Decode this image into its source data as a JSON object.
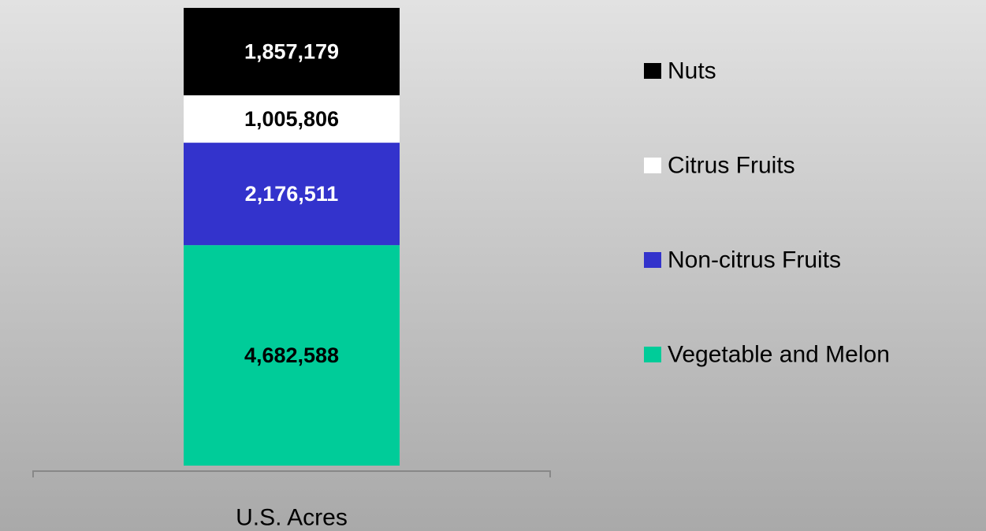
{
  "chart_data": {
    "type": "stacked_bar",
    "categories": [
      "U.S. Acres"
    ],
    "series": [
      {
        "name": "Vegetable and Melon",
        "color": "#00cc99",
        "values": [
          4682588
        ],
        "value_labels": [
          "4,682,588"
        ]
      },
      {
        "name": "Non-citrus Fruits",
        "color": "#3333cc",
        "values": [
          2176511
        ],
        "value_labels": [
          "2,176,511"
        ]
      },
      {
        "name": "Citrus Fruits",
        "color": "#ffffff",
        "values": [
          1005806
        ],
        "value_labels": [
          "1,005,806"
        ]
      },
      {
        "name": "Nuts",
        "color": "#000000",
        "values": [
          1857179
        ],
        "value_labels": [
          "1,857,179"
        ]
      }
    ],
    "legend": "right"
  }
}
